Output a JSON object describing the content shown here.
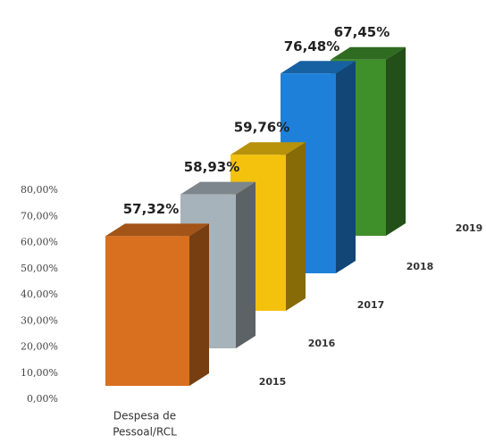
{
  "chart_data": {
    "type": "bar3d",
    "xlabel": [
      "Despesa de",
      "Pessoal/RCL"
    ],
    "categories": [
      "2015",
      "2016",
      "2017",
      "2018",
      "2019"
    ],
    "values": [
      57.32,
      58.93,
      59.76,
      76.48,
      67.45
    ],
    "value_labels": [
      "57,32%",
      "58,93%",
      "59,76%",
      "76,48%",
      "67,45%"
    ],
    "colors": [
      "#d9701f",
      "#a7b3ba",
      "#f4c20d",
      "#1e80d8",
      "#3f8f2b"
    ],
    "ylim": [
      0,
      80
    ],
    "yticks": [
      {
        "value": 0,
        "label": "0,00%"
      },
      {
        "value": 10,
        "label": "10,00%"
      },
      {
        "value": 20,
        "label": "20,00%"
      },
      {
        "value": 30,
        "label": "30,00%"
      },
      {
        "value": 40,
        "label": "40,00%"
      },
      {
        "value": 50,
        "label": "50,00%"
      },
      {
        "value": 60,
        "label": "60,00%"
      },
      {
        "value": 70,
        "label": "70,00%"
      },
      {
        "value": 80,
        "label": "80,00%"
      }
    ],
    "grid": false
  }
}
